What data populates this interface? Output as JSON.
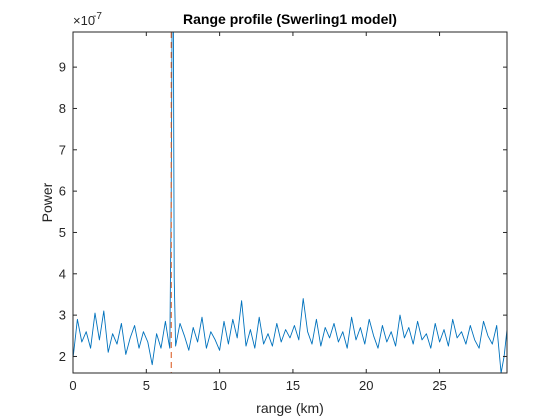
{
  "chart_data": {
    "type": "line",
    "title": "Range profile (Swerling1 model)",
    "xlabel": "range (km)",
    "ylabel": "Power",
    "exponent_label": "×10",
    "exponent_value": "-7",
    "xlim": [
      0,
      29.6
    ],
    "ylim": [
      1.6,
      9.85
    ],
    "x_ticks": [
      0,
      5,
      10,
      15,
      20,
      25
    ],
    "y_ticks": [
      2,
      3,
      4,
      5,
      6,
      7,
      8,
      9
    ],
    "grid": false,
    "target_marker_x": 6.7,
    "colors": {
      "series": "#0072BD",
      "marker": "#D95319",
      "axis": "#262626"
    },
    "series": [
      {
        "values_x": [
          0.0,
          0.3,
          0.6,
          0.9,
          1.2,
          1.5,
          1.8,
          2.1,
          2.4,
          2.7,
          3.0,
          3.3,
          3.6,
          3.9,
          4.2,
          4.5,
          4.8,
          5.1,
          5.4,
          5.7,
          6.0,
          6.3,
          6.5,
          6.6,
          6.7,
          6.75,
          6.8,
          6.85,
          6.9,
          7.0,
          7.3,
          7.6,
          7.9,
          8.2,
          8.5,
          8.8,
          9.1,
          9.4,
          9.7,
          10.0,
          10.3,
          10.6,
          10.9,
          11.2,
          11.5,
          11.8,
          12.1,
          12.4,
          12.7,
          13.0,
          13.3,
          13.6,
          13.9,
          14.2,
          14.5,
          14.8,
          15.1,
          15.4,
          15.7,
          16.0,
          16.3,
          16.6,
          16.9,
          17.2,
          17.5,
          17.8,
          18.1,
          18.4,
          18.7,
          19.0,
          19.3,
          19.6,
          19.9,
          20.2,
          20.5,
          20.8,
          21.1,
          21.4,
          21.7,
          22.0,
          22.3,
          22.6,
          22.9,
          23.2,
          23.5,
          23.8,
          24.1,
          24.4,
          24.7,
          25.0,
          25.3,
          25.6,
          25.9,
          26.2,
          26.5,
          26.8,
          27.1,
          27.4,
          27.7,
          28.0,
          28.3,
          28.6,
          28.9,
          29.2,
          29.4,
          29.6
        ],
        "values_y": [
          1.95,
          2.9,
          2.35,
          2.6,
          2.2,
          3.05,
          2.4,
          3.1,
          2.1,
          2.55,
          2.3,
          2.8,
          2.05,
          2.45,
          2.75,
          2.2,
          2.6,
          2.35,
          1.8,
          2.55,
          2.2,
          2.85,
          2.4,
          2.2,
          5.8,
          9.85,
          9.85,
          9.85,
          3.9,
          2.25,
          2.8,
          2.5,
          2.15,
          2.7,
          2.35,
          2.95,
          2.2,
          2.6,
          2.4,
          2.15,
          2.85,
          2.3,
          2.9,
          2.45,
          3.35,
          2.25,
          2.65,
          2.2,
          2.95,
          2.3,
          2.55,
          2.25,
          2.8,
          2.35,
          2.65,
          2.45,
          2.75,
          2.4,
          3.4,
          2.6,
          2.3,
          2.9,
          2.25,
          2.7,
          2.45,
          2.8,
          2.35,
          2.6,
          2.2,
          2.95,
          2.4,
          2.7,
          2.3,
          2.9,
          2.5,
          2.2,
          2.75,
          2.35,
          2.6,
          2.25,
          3.0,
          2.45,
          2.7,
          2.3,
          2.85,
          2.4,
          2.55,
          2.2,
          2.8,
          2.35,
          2.65,
          2.25,
          2.9,
          2.45,
          2.6,
          2.3,
          2.75,
          2.4,
          2.2,
          2.85,
          2.5,
          2.3,
          2.75,
          1.6,
          2.0,
          2.65
        ]
      }
    ]
  }
}
